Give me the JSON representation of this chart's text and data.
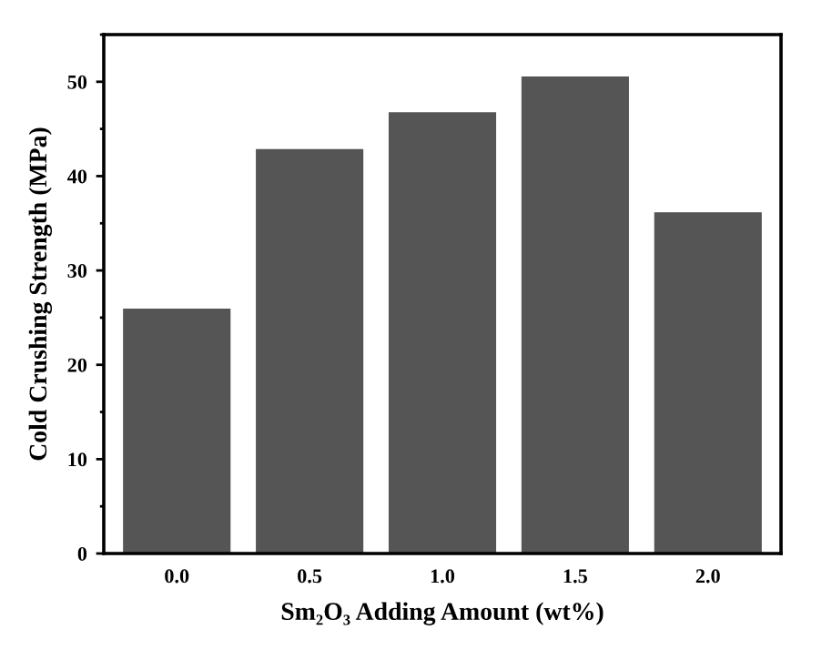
{
  "chart_data": {
    "type": "bar",
    "xlabel": "Sm₂O₃ Adding Amount (wt%)",
    "ylabel": "Cold Crushing Strength (MPa)",
    "categories": [
      "0.0",
      "0.5",
      "1.0",
      "1.5",
      "2.0"
    ],
    "values": [
      25.9,
      42.8,
      46.7,
      50.5,
      36.1
    ],
    "color": "#555555",
    "ylim": [
      0,
      55
    ],
    "yticks": [
      0,
      10,
      20,
      30,
      40,
      50
    ],
    "grid": false,
    "legend": false
  }
}
